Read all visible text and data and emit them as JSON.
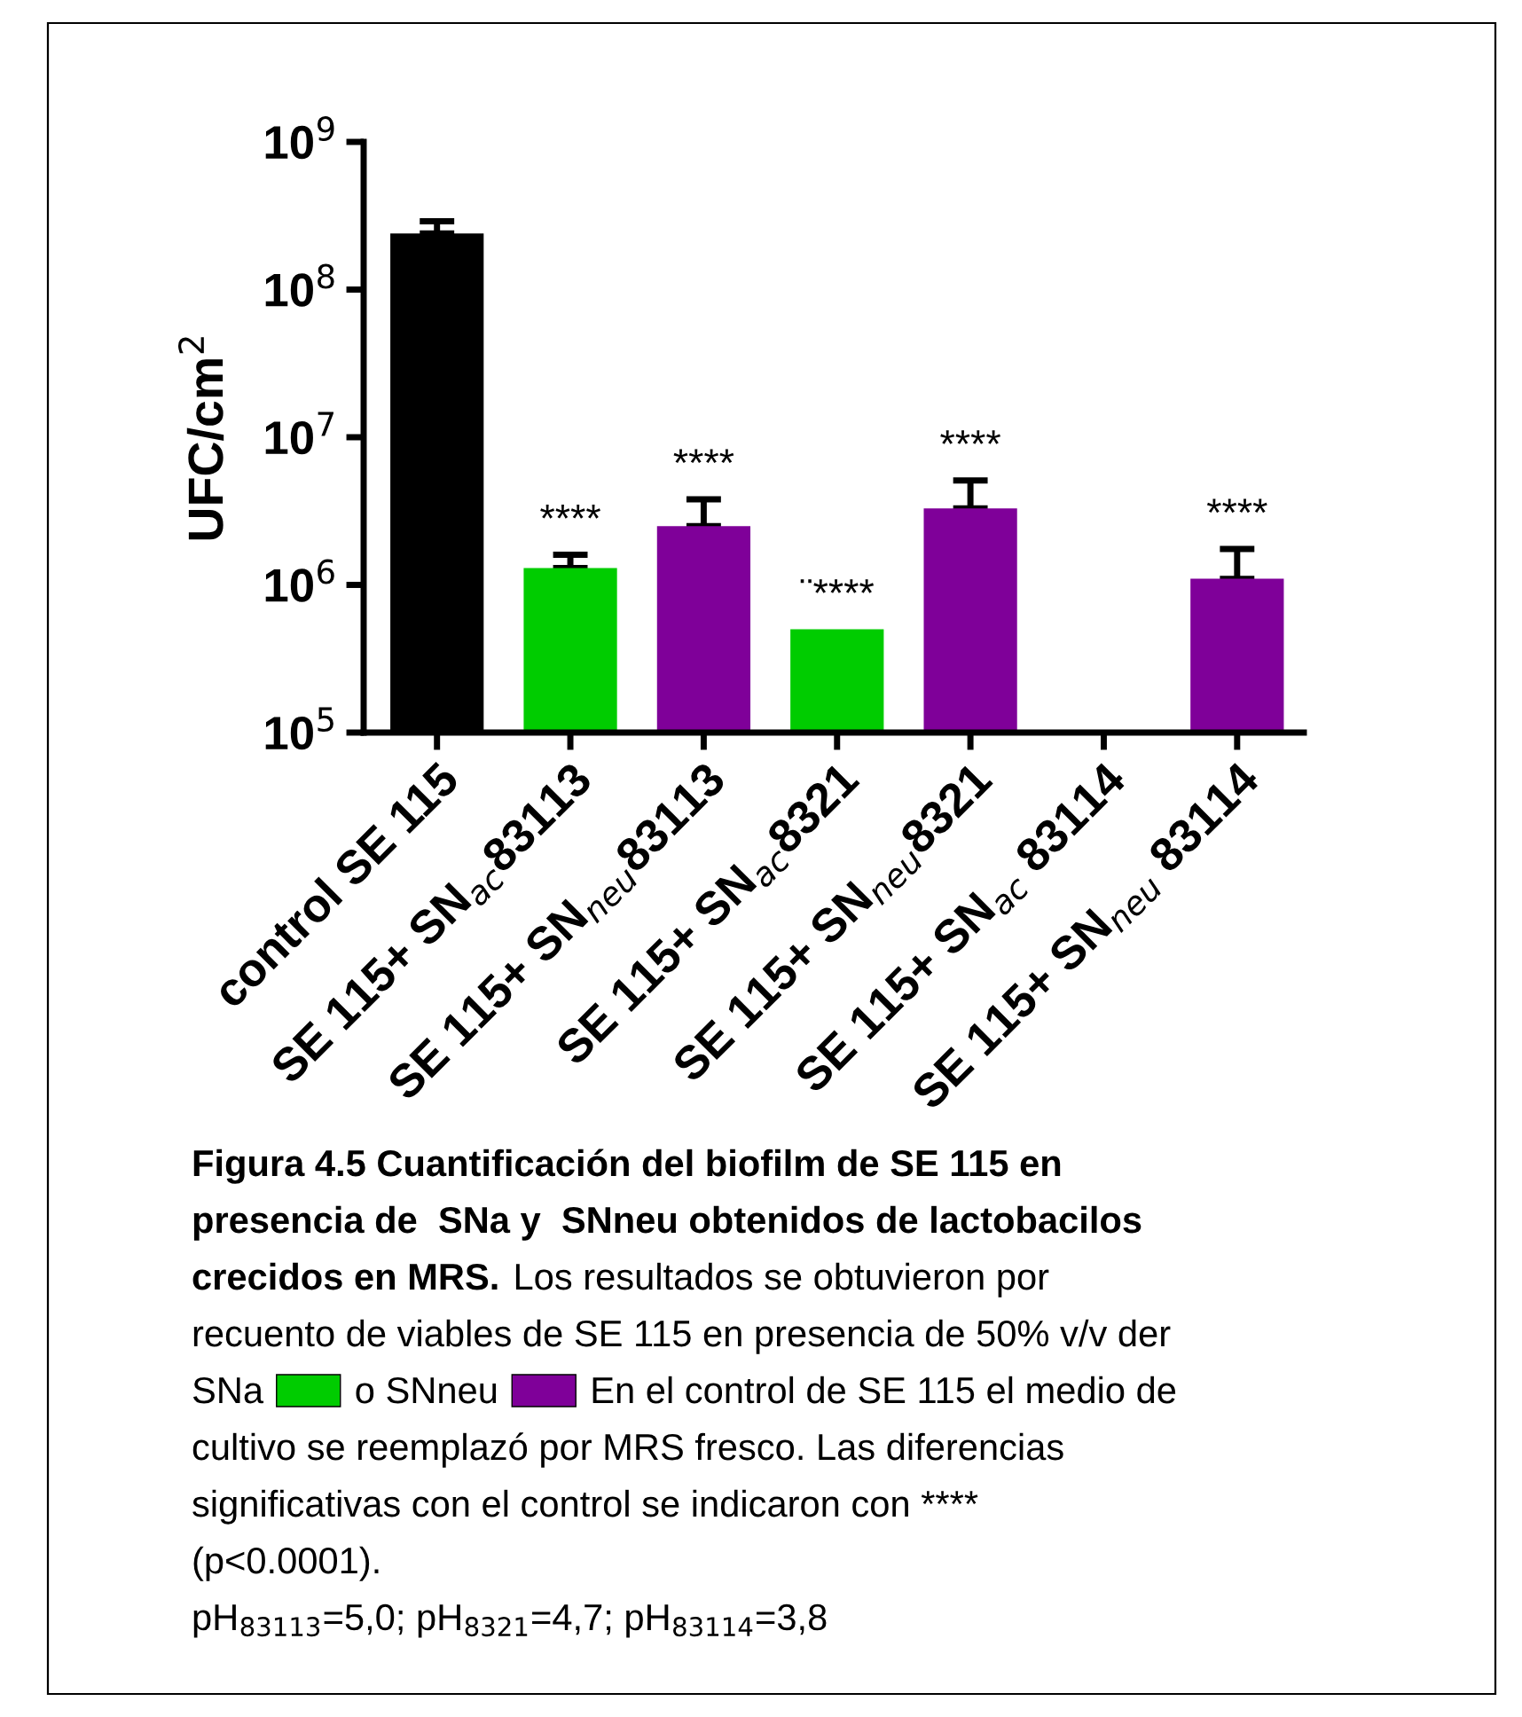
{
  "chart_data": {
    "type": "bar",
    "ylabel": "UFC/cm$^{2}$",
    "categories": [
      "control SE 115",
      "SE 115+ SN$_{ac}$83113",
      "SE 115+ SN$_{neu}$83113",
      "SE 115+ SN$_{ac}$8321",
      "SE 115+ SN$_{neu}$8321",
      "SE 115+ SN$_{ac}$ 83114",
      "SE 115+ SN$_{neu}$ 83114"
    ],
    "values": [
      240000000,
      1300000,
      2500000,
      500000,
      3300000,
      null,
      1100000
    ],
    "colors": [
      "#000000",
      "#00cc00",
      "#7f0099",
      "#00cc00",
      "#7f0099",
      "#00cc00",
      "#7f0099"
    ],
    "errors": [
      [
        240000000,
        290000000
      ],
      [
        1300000,
        1600000
      ],
      [
        2500000,
        3800000
      ],
      null,
      [
        3300000,
        5100000
      ],
      null,
      [
        1100000,
        1750000
      ]
    ],
    "value_labels": [
      null,
      "****",
      "****",
      "¨****",
      "****",
      null,
      "****"
    ],
    "log": "y",
    "ylim": [
      100000,
      1000000000
    ],
    "yticks": [
      {
        "value": 100000,
        "label": "10$^{5}$"
      },
      {
        "value": 1000000,
        "label": "10$^{6}$"
      },
      {
        "value": 10000000,
        "label": "10$^{7}$"
      },
      {
        "value": 100000000,
        "label": "10$^{8}$"
      },
      {
        "value": 1000000000,
        "label": "10$^{9}$"
      }
    ],
    "grid": false,
    "legend": false,
    "annotations": [
      "Figura 4.5 Cuantificación del biofilm de SE 115 en",
      "presencia de  SNa y  SNneu obtenidos de lactobacilos",
      "crecidos en MRS.",
      "Los resultados se obtuvieron por",
      "recuento de viables de SE 115 en presencia de 50% v/v der",
      "SNa",
      "o SNneu",
      "En el control de SE 115 el medio de",
      "cultivo se reemplazó por MRS fresco. Las diferencias",
      "significativas con el control se indicaron con ****",
      "(p<0.0001).",
      "pH$_{83113}$=5,0; pH$_{8321}$=4,7; pH$_{83114}$=3,8"
    ]
  }
}
